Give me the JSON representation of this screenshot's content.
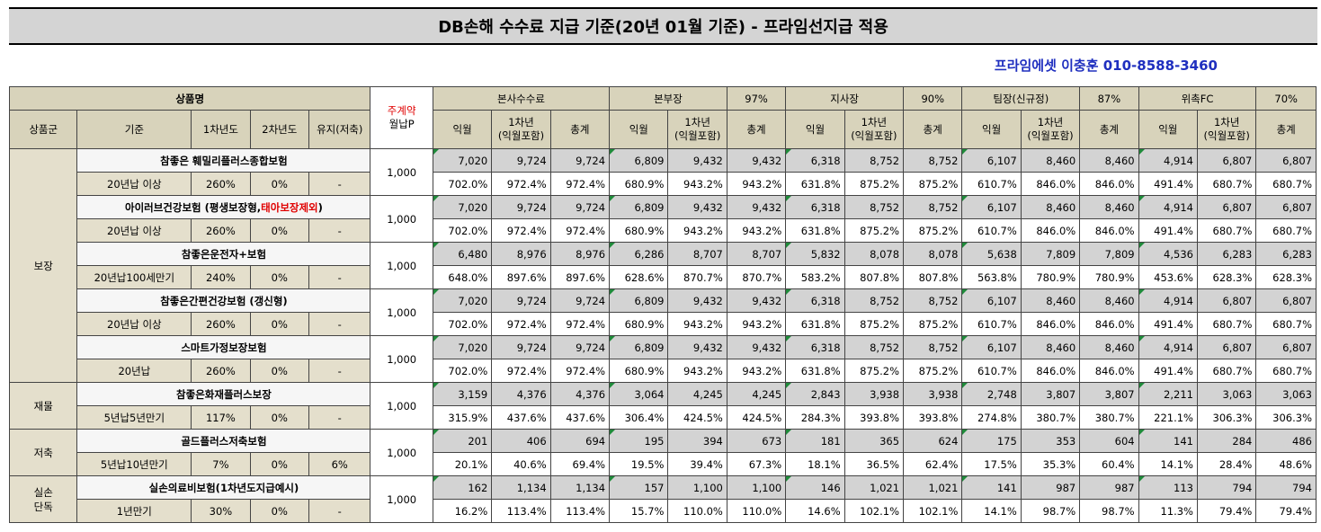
{
  "title": "DB손해 수수료 지급 기준(20년 01월 기준) - 프라임선지급 적용",
  "contact": "프라임에셋 이충훈 010-8588-3460",
  "header": {
    "product_name": "상품명",
    "main_contract_1": "주계약",
    "main_contract_2": "월납P",
    "product_group": "상품군",
    "criteria": "기준",
    "year1": "1차년도",
    "year2": "2차년도",
    "maintain": "유지(저축)",
    "levels": [
      {
        "name": "본사수수료",
        "pct": ""
      },
      {
        "name": "본부장",
        "pct": "97%"
      },
      {
        "name": "지사장",
        "pct": "90%"
      },
      {
        "name": "팀장(신규정)",
        "pct": "87%"
      },
      {
        "name": "위촉FC",
        "pct": "70%"
      }
    ],
    "col_ikwol": "익월",
    "col_first_1": "1차년",
    "col_first_2": "(익월포함)",
    "col_total": "총계"
  },
  "groups": [
    {
      "name": "보장",
      "products": [
        {
          "name": "참좋은 훼밀리플러스종합보험",
          "name_red": "",
          "name_tail": "",
          "criteria": "20년납 이상",
          "y1": "260%",
          "y2": "0%",
          "keep": "-",
          "premium": "1,000",
          "amounts": [
            "7,020",
            "9,724",
            "9,724",
            "6,809",
            "9,432",
            "9,432",
            "6,318",
            "8,752",
            "8,752",
            "6,107",
            "8,460",
            "8,460",
            "4,914",
            "6,807",
            "6,807"
          ],
          "pcts": [
            "702.0%",
            "972.4%",
            "972.4%",
            "680.9%",
            "943.2%",
            "943.2%",
            "631.8%",
            "875.2%",
            "875.2%",
            "610.7%",
            "846.0%",
            "846.0%",
            "491.4%",
            "680.7%",
            "680.7%"
          ]
        },
        {
          "name": "아이러브건강보험 (평생보장형,",
          "name_red": "태아보장제외",
          "name_tail": ")",
          "criteria": "20년납 이상",
          "y1": "260%",
          "y2": "0%",
          "keep": "-",
          "premium": "1,000",
          "amounts": [
            "7,020",
            "9,724",
            "9,724",
            "6,809",
            "9,432",
            "9,432",
            "6,318",
            "8,752",
            "8,752",
            "6,107",
            "8,460",
            "8,460",
            "4,914",
            "6,807",
            "6,807"
          ],
          "pcts": [
            "702.0%",
            "972.4%",
            "972.4%",
            "680.9%",
            "943.2%",
            "943.2%",
            "631.8%",
            "875.2%",
            "875.2%",
            "610.7%",
            "846.0%",
            "846.0%",
            "491.4%",
            "680.7%",
            "680.7%"
          ]
        },
        {
          "name": "참좋은운전자+보험",
          "name_red": "",
          "name_tail": "",
          "criteria": "20년납100세만기",
          "y1": "240%",
          "y2": "0%",
          "keep": "-",
          "premium": "1,000",
          "amounts": [
            "6,480",
            "8,976",
            "8,976",
            "6,286",
            "8,707",
            "8,707",
            "5,832",
            "8,078",
            "8,078",
            "5,638",
            "7,809",
            "7,809",
            "4,536",
            "6,283",
            "6,283"
          ],
          "pcts": [
            "648.0%",
            "897.6%",
            "897.6%",
            "628.6%",
            "870.7%",
            "870.7%",
            "583.2%",
            "807.8%",
            "807.8%",
            "563.8%",
            "780.9%",
            "780.9%",
            "453.6%",
            "628.3%",
            "628.3%"
          ]
        },
        {
          "name": "참좋은간편건강보험 (갱신형)",
          "name_red": "",
          "name_tail": "",
          "criteria": "20년납 이상",
          "y1": "260%",
          "y2": "0%",
          "keep": "-",
          "premium": "1,000",
          "amounts": [
            "7,020",
            "9,724",
            "9,724",
            "6,809",
            "9,432",
            "9,432",
            "6,318",
            "8,752",
            "8,752",
            "6,107",
            "8,460",
            "8,460",
            "4,914",
            "6,807",
            "6,807"
          ],
          "pcts": [
            "702.0%",
            "972.4%",
            "972.4%",
            "680.9%",
            "943.2%",
            "943.2%",
            "631.8%",
            "875.2%",
            "875.2%",
            "610.7%",
            "846.0%",
            "846.0%",
            "491.4%",
            "680.7%",
            "680.7%"
          ]
        },
        {
          "name": "스마트가정보장보험",
          "name_red": "",
          "name_tail": "",
          "criteria": "20년납",
          "y1": "260%",
          "y2": "0%",
          "keep": "-",
          "premium": "1,000",
          "amounts": [
            "7,020",
            "9,724",
            "9,724",
            "6,809",
            "9,432",
            "9,432",
            "6,318",
            "8,752",
            "8,752",
            "6,107",
            "8,460",
            "8,460",
            "4,914",
            "6,807",
            "6,807"
          ],
          "pcts": [
            "702.0%",
            "972.4%",
            "972.4%",
            "680.9%",
            "943.2%",
            "943.2%",
            "631.8%",
            "875.2%",
            "875.2%",
            "610.7%",
            "846.0%",
            "846.0%",
            "491.4%",
            "680.7%",
            "680.7%"
          ]
        }
      ]
    },
    {
      "name": "재물",
      "products": [
        {
          "name": "참좋은화재플러스보장",
          "name_red": "",
          "name_tail": "",
          "criteria": "5년납5년만기",
          "y1": "117%",
          "y2": "0%",
          "keep": "-",
          "premium": "1,000",
          "amounts": [
            "3,159",
            "4,376",
            "4,376",
            "3,064",
            "4,245",
            "4,245",
            "2,843",
            "3,938",
            "3,938",
            "2,748",
            "3,807",
            "3,807",
            "2,211",
            "3,063",
            "3,063"
          ],
          "pcts": [
            "315.9%",
            "437.6%",
            "437.6%",
            "306.4%",
            "424.5%",
            "424.5%",
            "284.3%",
            "393.8%",
            "393.8%",
            "274.8%",
            "380.7%",
            "380.7%",
            "221.1%",
            "306.3%",
            "306.3%"
          ]
        }
      ]
    },
    {
      "name": "저축",
      "products": [
        {
          "name": "골드플러스저축보험",
          "name_red": "",
          "name_tail": "",
          "criteria": "5년납10년만기",
          "y1": "7%",
          "y2": "0%",
          "keep": "6%",
          "premium": "1,000",
          "amounts": [
            "201",
            "406",
            "694",
            "195",
            "394",
            "673",
            "181",
            "365",
            "624",
            "175",
            "353",
            "604",
            "141",
            "284",
            "486"
          ],
          "pcts": [
            "20.1%",
            "40.6%",
            "69.4%",
            "19.5%",
            "39.4%",
            "67.3%",
            "18.1%",
            "36.5%",
            "62.4%",
            "17.5%",
            "35.3%",
            "60.4%",
            "14.1%",
            "28.4%",
            "48.6%"
          ]
        }
      ]
    },
    {
      "name": "실손\n단독",
      "products": [
        {
          "name": "실손의료비보험(1차년도지급예시)",
          "name_red": "",
          "name_tail": "",
          "criteria": "1년만기",
          "y1": "30%",
          "y2": "0%",
          "keep": "-",
          "premium": "1,000",
          "amounts": [
            "162",
            "1,134",
            "1,134",
            "157",
            "1,100",
            "1,100",
            "146",
            "1,021",
            "1,021",
            "141",
            "987",
            "987",
            "113",
            "794",
            "794"
          ],
          "pcts": [
            "16.2%",
            "113.4%",
            "113.4%",
            "15.7%",
            "110.0%",
            "110.0%",
            "14.6%",
            "102.1%",
            "102.1%",
            "14.1%",
            "98.7%",
            "98.7%",
            "11.3%",
            "79.4%",
            "79.4%"
          ]
        }
      ]
    }
  ]
}
